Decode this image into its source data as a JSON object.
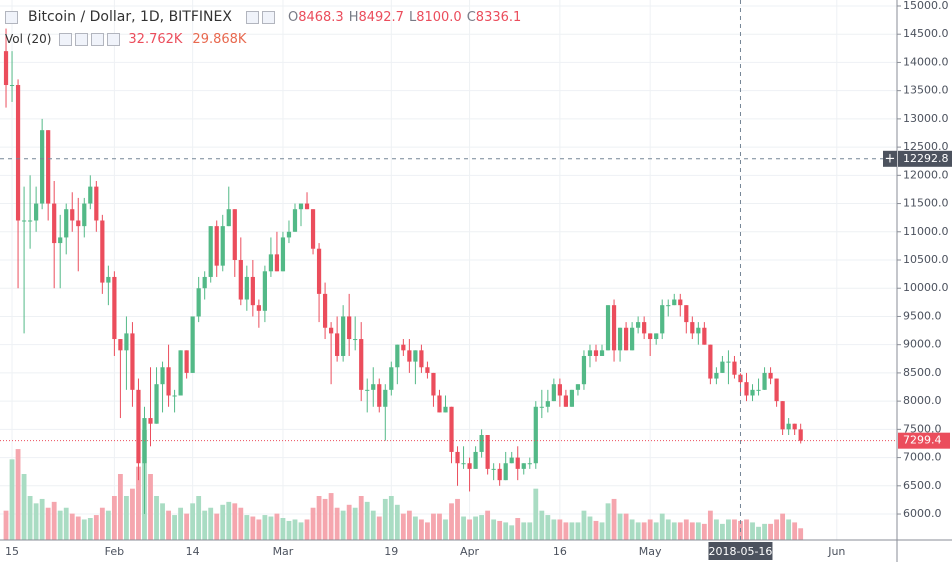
{
  "chart_data": {
    "type": "candlestick",
    "title": "Bitcoin / Dollar, 1D, BITFINEX",
    "ohlc_legend": [
      {
        "key": "O",
        "value": "8468.3"
      },
      {
        "key": "H",
        "value": "8492.7"
      },
      {
        "key": "L",
        "value": "8100.0"
      },
      {
        "key": "C",
        "value": "8336.1"
      }
    ],
    "volume_legend": {
      "title": "Vol (20)",
      "values": [
        "32.762K",
        "29.868K"
      ]
    },
    "x": [
      "2018-01-14",
      "2018-01-15",
      "2018-01-16",
      "2018-01-17",
      "2018-01-18",
      "2018-01-19",
      "2018-01-20",
      "2018-01-21",
      "2018-01-22",
      "2018-01-23",
      "2018-01-24",
      "2018-01-25",
      "2018-01-26",
      "2018-01-27",
      "2018-01-28",
      "2018-01-29",
      "2018-01-30",
      "2018-01-31",
      "2018-02-01",
      "2018-02-02",
      "2018-02-03",
      "2018-02-04",
      "2018-02-05",
      "2018-02-06",
      "2018-02-07",
      "2018-02-08",
      "2018-02-09",
      "2018-02-10",
      "2018-02-11",
      "2018-02-12",
      "2018-02-13",
      "2018-02-14",
      "2018-02-15",
      "2018-02-16",
      "2018-02-17",
      "2018-02-18",
      "2018-02-19",
      "2018-02-20",
      "2018-02-21",
      "2018-02-22",
      "2018-02-23",
      "2018-02-24",
      "2018-02-25",
      "2018-02-26",
      "2018-02-27",
      "2018-02-28",
      "2018-03-01",
      "2018-03-02",
      "2018-03-03",
      "2018-03-04",
      "2018-03-05",
      "2018-03-06",
      "2018-03-07",
      "2018-03-08",
      "2018-03-09",
      "2018-03-10",
      "2018-03-11",
      "2018-03-12",
      "2018-03-13",
      "2018-03-14",
      "2018-03-15",
      "2018-03-16",
      "2018-03-17",
      "2018-03-18",
      "2018-03-19",
      "2018-03-20",
      "2018-03-21",
      "2018-03-22",
      "2018-03-23",
      "2018-03-24",
      "2018-03-25",
      "2018-03-26",
      "2018-03-27",
      "2018-03-28",
      "2018-03-29",
      "2018-03-30",
      "2018-03-31",
      "2018-04-01",
      "2018-04-02",
      "2018-04-03",
      "2018-04-04",
      "2018-04-05",
      "2018-04-06",
      "2018-04-07",
      "2018-04-08",
      "2018-04-09",
      "2018-04-10",
      "2018-04-11",
      "2018-04-12",
      "2018-04-13",
      "2018-04-14",
      "2018-04-15",
      "2018-04-16",
      "2018-04-17",
      "2018-04-18",
      "2018-04-19",
      "2018-04-20",
      "2018-04-21",
      "2018-04-22",
      "2018-04-23",
      "2018-04-24",
      "2018-04-25",
      "2018-04-26",
      "2018-04-27",
      "2018-04-28",
      "2018-04-29",
      "2018-04-30",
      "2018-05-01",
      "2018-05-02",
      "2018-05-03",
      "2018-05-04",
      "2018-05-05",
      "2018-05-06",
      "2018-05-07",
      "2018-05-08",
      "2018-05-09",
      "2018-05-10",
      "2018-05-11",
      "2018-05-12",
      "2018-05-13",
      "2018-05-14",
      "2018-05-15",
      "2018-05-16",
      "2018-05-17",
      "2018-05-18",
      "2018-05-19",
      "2018-05-20",
      "2018-05-21",
      "2018-05-22",
      "2018-05-23",
      "2018-05-24",
      "2018-05-25",
      "2018-05-26"
    ],
    "open": [
      14200,
      13600,
      13600,
      11200,
      11200,
      11200,
      11500,
      12800,
      11500,
      10800,
      10900,
      11400,
      11200,
      11100,
      11500,
      11800,
      11200,
      10100,
      10200,
      9100,
      8900,
      9200,
      8200,
      6900,
      7700,
      7600,
      8300,
      8600,
      8100,
      8100,
      8900,
      8500,
      9500,
      10000,
      10200,
      11100,
      10400,
      11100,
      11400,
      10500,
      9800,
      10200,
      9700,
      9600,
      10300,
      10600,
      10300,
      10900,
      11000,
      11400,
      11500,
      11400,
      10700,
      9900,
      9300,
      9200,
      8800,
      9500,
      9100,
      9100,
      8200,
      8200,
      8300,
      7900,
      8200,
      8600,
      9000,
      8900,
      8700,
      8900,
      8600,
      8500,
      8100,
      7800,
      7900,
      7100,
      6900,
      6900,
      6800,
      7100,
      7400,
      6800,
      6800,
      6600,
      6900,
      7000,
      6800,
      6900,
      6900,
      7900,
      7900,
      8000,
      8300,
      8100,
      7900,
      8200,
      8300,
      8800,
      8900,
      8800,
      8900,
      9700,
      8900,
      9300,
      8900,
      9300,
      9400,
      9200,
      9100,
      9200,
      9700,
      9700,
      9800,
      9700,
      9400,
      9200,
      9300,
      9000,
      8400,
      8500,
      8700,
      8700,
      8468.3,
      8336.1,
      8100,
      8200,
      8200,
      8500,
      8400,
      8000,
      7500,
      7600,
      7500
    ],
    "high": [
      14600,
      14200,
      13700,
      11800,
      12000,
      11800,
      13000,
      12800,
      11900,
      11300,
      11500,
      11700,
      11600,
      11600,
      12000,
      11900,
      11300,
      10400,
      10300,
      9100,
      9500,
      9400,
      8400,
      7900,
      8600,
      8600,
      8700,
      9000,
      8200,
      8900,
      8900,
      9500,
      10200,
      10300,
      11100,
      11200,
      11300,
      11800,
      11400,
      10900,
      10400,
      10500,
      9800,
      10400,
      10900,
      11000,
      11000,
      11200,
      11500,
      11500,
      11700,
      11400,
      10800,
      10100,
      9400,
      9500,
      9700,
      9900,
      9500,
      9400,
      8400,
      8600,
      8400,
      8300,
      8700,
      9000,
      9100,
      9100,
      8900,
      9000,
      8700,
      8500,
      8200,
      8100,
      7900,
      7200,
      7200,
      7000,
      7200,
      7500,
      7400,
      6900,
      6900,
      7100,
      7100,
      7200,
      6900,
      7000,
      8000,
      8200,
      8200,
      8400,
      8400,
      8200,
      8200,
      8300,
      8900,
      9000,
      9000,
      9000,
      9700,
      9800,
      9300,
      9400,
      9400,
      9500,
      9500,
      9200,
      9200,
      9800,
      9800,
      9900,
      9900,
      9700,
      9500,
      9400,
      9400,
      9000,
      8600,
      8800,
      8900,
      8800,
      8492.7,
      8500,
      8300,
      8400,
      8600,
      8600,
      8400,
      8000,
      7700,
      7600,
      7600
    ],
    "low": [
      13200,
      13300,
      10000,
      9200,
      10700,
      11000,
      11400,
      11200,
      10000,
      10000,
      10600,
      11000,
      10300,
      10900,
      11400,
      11000,
      9900,
      9700,
      8800,
      7700,
      8200,
      7900,
      6600,
      6000,
      7200,
      7600,
      7800,
      7900,
      7800,
      8100,
      8400,
      8500,
      9400,
      9800,
      10100,
      10200,
      10300,
      11100,
      10200,
      9700,
      9600,
      9500,
      9300,
      9400,
      10200,
      10300,
      10300,
      10800,
      11000,
      11100,
      11400,
      10600,
      9400,
      9100,
      8300,
      8700,
      8700,
      8800,
      8900,
      8000,
      7800,
      7900,
      7800,
      7300,
      8100,
      8300,
      8800,
      8500,
      8300,
      8500,
      8400,
      7900,
      7800,
      7800,
      6900,
      6500,
      6800,
      6400,
      6800,
      7000,
      6700,
      6600,
      6500,
      6600,
      6900,
      6600,
      6700,
      6800,
      6800,
      7700,
      7800,
      8000,
      7900,
      7900,
      7900,
      8100,
      8200,
      8600,
      8700,
      8800,
      8900,
      8700,
      8700,
      8900,
      8900,
      9200,
      9100,
      8800,
      9000,
      9100,
      9500,
      9700,
      9500,
      9200,
      9100,
      9000,
      9000,
      8300,
      8300,
      8500,
      8300,
      8400,
      8100.0,
      8000,
      8000,
      8100,
      8200,
      8300,
      7900,
      7400,
      7400,
      7400,
      7250
    ],
    "close": [
      13600,
      13600,
      11200,
      11200,
      11200,
      11500,
      12800,
      11500,
      10800,
      10900,
      11400,
      11200,
      11100,
      11500,
      11800,
      11200,
      10100,
      10200,
      9100,
      8900,
      9200,
      8200,
      6900,
      7700,
      7600,
      8300,
      8600,
      8100,
      8100,
      8900,
      8500,
      9500,
      10000,
      10200,
      11100,
      10400,
      11100,
      11400,
      10500,
      9800,
      10200,
      9700,
      9600,
      10300,
      10600,
      10300,
      10900,
      11000,
      11400,
      11500,
      11400,
      10700,
      9900,
      9300,
      9200,
      8800,
      9500,
      9100,
      9100,
      8200,
      8200,
      8300,
      7900,
      8200,
      8600,
      9000,
      8900,
      8700,
      8900,
      8600,
      8500,
      8100,
      7800,
      7900,
      7100,
      6900,
      6900,
      6800,
      7100,
      7400,
      6800,
      6800,
      6600,
      6900,
      7000,
      6800,
      6900,
      6900,
      7900,
      7900,
      8000,
      8300,
      8100,
      7900,
      8200,
      8300,
      8800,
      8900,
      8800,
      8900,
      9700,
      8900,
      9300,
      8900,
      9300,
      9400,
      9200,
      9100,
      9200,
      9700,
      9700,
      9800,
      9700,
      9400,
      9200,
      9300,
      9000,
      8400,
      8500,
      8700,
      8700,
      8468.3,
      8336.1,
      8100,
      8200,
      8200,
      8500,
      8400,
      8000,
      7500,
      7600,
      7500,
      7299.4
    ],
    "volume": [
      20000,
      55000,
      62000,
      45000,
      30000,
      25000,
      28000,
      22000,
      26000,
      20000,
      22000,
      18000,
      16000,
      14000,
      15000,
      17000,
      22000,
      20000,
      30000,
      45000,
      30000,
      35000,
      50000,
      75000,
      45000,
      30000,
      25000,
      20000,
      17000,
      22000,
      18000,
      25000,
      30000,
      20000,
      22000,
      18000,
      24000,
      26000,
      25000,
      22000,
      17000,
      16000,
      14000,
      17000,
      16000,
      18000,
      15000,
      13000,
      14000,
      12000,
      14000,
      22000,
      30000,
      28000,
      32000,
      22000,
      20000,
      24000,
      22000,
      30000,
      26000,
      20000,
      16000,
      28000,
      30000,
      24000,
      18000,
      20000,
      16000,
      14000,
      12000,
      18000,
      18000,
      14000,
      25000,
      28000,
      16000,
      14000,
      16000,
      17000,
      20000,
      14000,
      13000,
      12000,
      10000,
      15000,
      12000,
      12000,
      35000,
      20000,
      17000,
      14000,
      14000,
      12000,
      12000,
      12000,
      20000,
      16000,
      13000,
      12000,
      25000,
      28000,
      18000,
      18000,
      14000,
      12000,
      12000,
      14000,
      12000,
      18000,
      14000,
      12000,
      12000,
      14000,
      12000,
      12000,
      11000,
      20000,
      14000,
      11000,
      14000,
      14000,
      13000,
      14000,
      12000,
      9000,
      11000,
      11000,
      14000,
      18000,
      14000,
      12000,
      8000
    ],
    "up_color": "#53b987",
    "down_color": "#eb4d5c",
    "up_volume_color": "#a9dcc3",
    "down_volume_color": "#f5a6ae",
    "xlim": [
      "2018-01-13",
      "2018-06-11"
    ],
    "xticks": [
      {
        "value": "2018-01-15",
        "label": "15"
      },
      {
        "value": "2018-02-01",
        "label": "Feb"
      },
      {
        "value": "2018-02-14",
        "label": "14"
      },
      {
        "value": "2018-03-01",
        "label": "Mar"
      },
      {
        "value": "2018-03-19",
        "label": "19"
      },
      {
        "value": "2018-04-01",
        "label": "Apr"
      },
      {
        "value": "2018-04-16",
        "label": "16"
      },
      {
        "value": "2018-05-01",
        "label": "May"
      },
      {
        "value": "2018-06-01",
        "label": "Jun"
      }
    ],
    "ylim": [
      5540,
      15106
    ],
    "yticks": [
      {
        "value": 6000,
        "label": "6000.0"
      },
      {
        "value": 6500,
        "label": "6500.0"
      },
      {
        "value": 7000,
        "label": "7000.0"
      },
      {
        "value": 7500,
        "label": "7500.0"
      },
      {
        "value": 8000,
        "label": "8000.0"
      },
      {
        "value": 8500,
        "label": "8500.0"
      },
      {
        "value": 9000,
        "label": "9000.0"
      },
      {
        "value": 9500,
        "label": "9500.0"
      },
      {
        "value": 10000,
        "label": "10000.0"
      },
      {
        "value": 10500,
        "label": "10500.0"
      },
      {
        "value": 11000,
        "label": "11000.0"
      },
      {
        "value": 11500,
        "label": "11500.0"
      },
      {
        "value": 12000,
        "label": "12000.0"
      },
      {
        "value": 12500,
        "label": "12500.0"
      },
      {
        "value": 13000,
        "label": "13000.0"
      },
      {
        "value": 13500,
        "label": "13500.0"
      },
      {
        "value": 14000,
        "label": "14000.0"
      },
      {
        "value": 14500,
        "label": "14500.0"
      },
      {
        "value": 15000,
        "label": "15000.0"
      }
    ],
    "grid": true,
    "crosshair": {
      "x": "2018-05-16",
      "y": 12292.8
    },
    "last_price": 7299.4
  }
}
